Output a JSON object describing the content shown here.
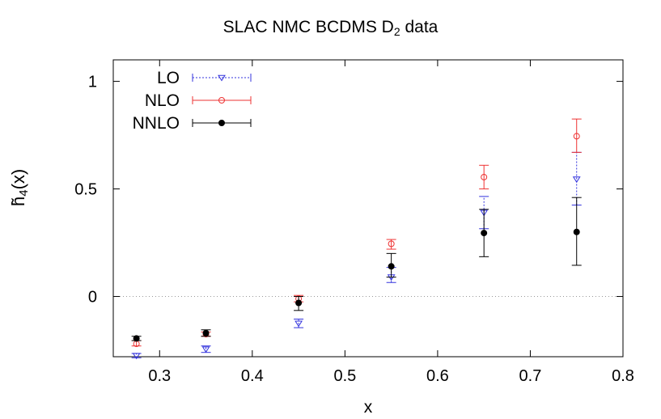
{
  "chart_data": {
    "type": "scatter",
    "title": "SLAC NMC BCDMS D",
    "title_subscript": "2",
    "title_suffix": " data",
    "xlabel": "x",
    "ylabel_main": "h̃",
    "ylabel_subscript": "4",
    "ylabel_suffix": "(x)",
    "xlim": [
      0.25,
      0.8
    ],
    "ylim": [
      -0.28,
      1.1
    ],
    "xticks": [
      0.3,
      0.4,
      0.5,
      0.6,
      0.7,
      0.8
    ],
    "xtick_labels": [
      "0.3",
      "0.4",
      "0.5",
      "0.6",
      "0.7",
      "0.8"
    ],
    "yticks": [
      0,
      0.5,
      1
    ],
    "ytick_labels": [
      "0",
      "0.5",
      "1"
    ],
    "zero_line": true,
    "legend_position": "top-left",
    "series": [
      {
        "name": "LO",
        "color": "#3333dd",
        "marker": "triangle-down",
        "line": "dotted",
        "points": [
          {
            "x": 0.275,
            "y": -0.275,
            "lo": -0.285,
            "hi": -0.265
          },
          {
            "x": 0.35,
            "y": -0.245,
            "lo": -0.26,
            "hi": -0.23
          },
          {
            "x": 0.45,
            "y": -0.125,
            "lo": -0.145,
            "hi": -0.105
          },
          {
            "x": 0.55,
            "y": 0.09,
            "lo": 0.065,
            "hi": 0.135
          },
          {
            "x": 0.65,
            "y": 0.39,
            "lo": 0.315,
            "hi": 0.465
          },
          {
            "x": 0.75,
            "y": 0.545,
            "lo": 0.425,
            "hi": 0.67
          }
        ]
      },
      {
        "name": "NLO",
        "color": "#ee3333",
        "marker": "circle-open",
        "line": "solid",
        "points": [
          {
            "x": 0.275,
            "y": -0.22,
            "lo": -0.23,
            "hi": -0.205
          },
          {
            "x": 0.35,
            "y": -0.175,
            "lo": -0.185,
            "hi": -0.165
          },
          {
            "x": 0.45,
            "y": -0.01,
            "lo": -0.025,
            "hi": 0.005
          },
          {
            "x": 0.55,
            "y": 0.245,
            "lo": 0.22,
            "hi": 0.265
          },
          {
            "x": 0.65,
            "y": 0.555,
            "lo": 0.5,
            "hi": 0.61
          },
          {
            "x": 0.75,
            "y": 0.745,
            "lo": 0.67,
            "hi": 0.825
          }
        ]
      },
      {
        "name": "NNLO",
        "color": "#000000",
        "marker": "circle-filled",
        "line": "solid",
        "points": [
          {
            "x": 0.275,
            "y": -0.195,
            "lo": -0.205,
            "hi": -0.185
          },
          {
            "x": 0.35,
            "y": -0.17,
            "lo": -0.185,
            "hi": -0.155
          },
          {
            "x": 0.45,
            "y": -0.03,
            "lo": -0.065,
            "hi": 0.0
          },
          {
            "x": 0.55,
            "y": 0.14,
            "lo": 0.09,
            "hi": 0.2
          },
          {
            "x": 0.65,
            "y": 0.295,
            "lo": 0.185,
            "hi": 0.405
          },
          {
            "x": 0.75,
            "y": 0.3,
            "lo": 0.145,
            "hi": 0.46
          }
        ]
      }
    ]
  }
}
